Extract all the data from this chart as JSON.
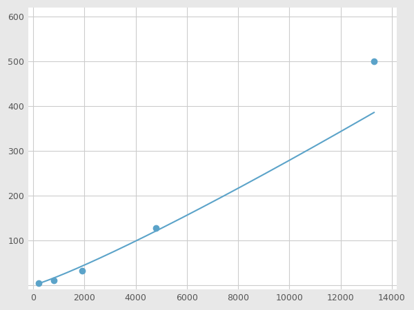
{
  "x_points": [
    200,
    800,
    1900,
    4800,
    13300
  ],
  "y_points": [
    5,
    10,
    32,
    128,
    500
  ],
  "line_color": "#5ba3c9",
  "marker_color": "#5ba3c9",
  "marker_size": 6,
  "line_width": 1.5,
  "xlim": [
    -200,
    14200
  ],
  "ylim": [
    -10,
    620
  ],
  "xticks": [
    0,
    2000,
    4000,
    6000,
    8000,
    10000,
    12000,
    14000
  ],
  "yticks": [
    0,
    100,
    200,
    300,
    400,
    500,
    600
  ],
  "xtick_labels": [
    "0",
    "2000",
    "4000",
    "6000",
    "8000",
    "10000",
    "12000",
    "14000"
  ],
  "ytick_labels": [
    "",
    "100",
    "200",
    "300",
    "400",
    "500",
    "600"
  ],
  "grid_color": "#cccccc",
  "plot_bg": "#ffffff",
  "figure_bg": "#e8e8e8"
}
